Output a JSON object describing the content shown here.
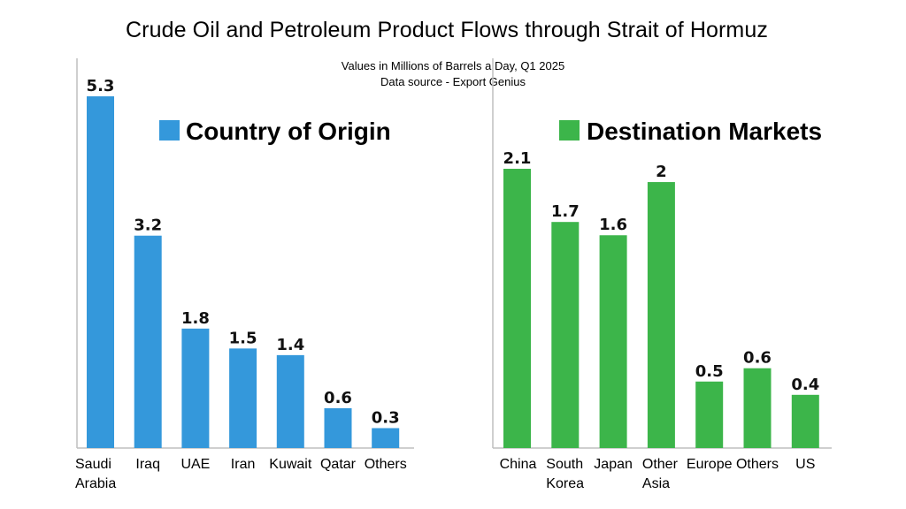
{
  "title": "Crude Oil and Petroleum Product Flows through Strait of Hormuz",
  "subtitle_lines": [
    "Values in Millions of Barrels a Day, Q1 2025",
    "Data source - Export Genius"
  ],
  "colors": {
    "origin": "#3498db",
    "destination": "#3cb54a",
    "axis": "#bfbfbf"
  },
  "chart_data": [
    {
      "type": "bar",
      "legend": "Country of Origin",
      "categories": [
        [
          "Saudi",
          "Arabia"
        ],
        [
          "Iraq"
        ],
        [
          "UAE"
        ],
        [
          "Iran"
        ],
        [
          "Kuwait"
        ],
        [
          "Qatar"
        ],
        [
          "Others"
        ]
      ],
      "values": [
        5.3,
        3.2,
        1.8,
        1.5,
        1.4,
        0.6,
        0.3
      ],
      "value_labels": [
        "5.3",
        "3.2",
        "1.8",
        "1.5",
        "1.4",
        "0.6",
        "0.3"
      ],
      "ylim": [
        0,
        5.3
      ],
      "color": "#3498db"
    },
    {
      "type": "bar",
      "legend": "Destination Markets",
      "categories": [
        [
          "China"
        ],
        [
          "South",
          "Korea"
        ],
        [
          "Japan"
        ],
        [
          "Other",
          "Asia"
        ],
        [
          "Europe"
        ],
        [
          "Others"
        ],
        [
          "US"
        ]
      ],
      "values": [
        2.1,
        1.7,
        1.6,
        2.0,
        0.5,
        0.6,
        0.4
      ],
      "value_labels": [
        "2.1",
        "1.7",
        "1.6",
        "2",
        "0.5",
        "0.6",
        "0.4"
      ],
      "ylim": [
        0,
        2.1
      ],
      "color": "#3cb54a"
    }
  ]
}
